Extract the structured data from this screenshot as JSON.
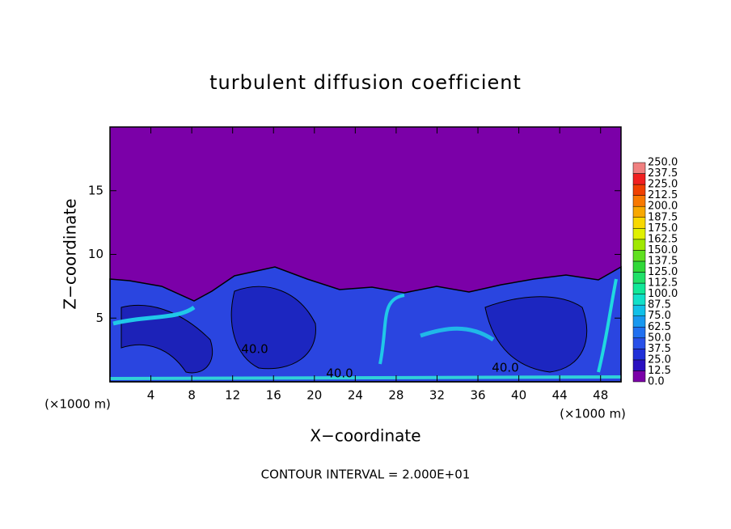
{
  "chart_data": {
    "type": "contour",
    "title": "turbulent diffusion coefficient",
    "xlabel": "X−coordinate",
    "ylabel": "Z−coordinate",
    "x_unit_label": "(×1000 m)",
    "annotation": "CONTOUR INTERVAL = 2.000E+01",
    "xlim": [
      0,
      50
    ],
    "ylim": [
      0,
      20
    ],
    "xticks": [
      4,
      8,
      12,
      16,
      20,
      24,
      28,
      32,
      36,
      40,
      44,
      48
    ],
    "yticks": [
      5,
      10,
      15
    ],
    "contour_labels": [
      {
        "value": 40,
        "label": "40.0"
      },
      {
        "value": 40,
        "label": "40.0"
      },
      {
        "value": 40,
        "label": "40.0"
      }
    ],
    "colorbar": {
      "levels": [
        {
          "value": 0,
          "label": "0.0"
        },
        {
          "value": 12.5,
          "label": "12.5"
        },
        {
          "value": 25,
          "label": "25.0"
        },
        {
          "value": 37.5,
          "label": "37.5"
        },
        {
          "value": 50,
          "label": "50.0"
        },
        {
          "value": 62.5,
          "label": "62.5"
        },
        {
          "value": 75,
          "label": "75.0"
        },
        {
          "value": 87.5,
          "label": "87.5"
        },
        {
          "value": 100,
          "label": "100.0"
        },
        {
          "value": 112.5,
          "label": "112.5"
        },
        {
          "value": 125,
          "label": "125.0"
        },
        {
          "value": 137.5,
          "label": "137.5"
        },
        {
          "value": 150,
          "label": "150.0"
        },
        {
          "value": 162.5,
          "label": "162.5"
        },
        {
          "value": 175,
          "label": "175.0"
        },
        {
          "value": 187.5,
          "label": "187.5"
        },
        {
          "value": 200,
          "label": "200.0"
        },
        {
          "value": 212.5,
          "label": "212.5"
        },
        {
          "value": 225,
          "label": "225.0"
        },
        {
          "value": 237.5,
          "label": "237.5"
        },
        {
          "value": 250,
          "label": "250.0"
        }
      ],
      "colors": [
        "#7b00a8",
        "#2a10c0",
        "#2030d8",
        "#2850e8",
        "#2070f0",
        "#1898f0",
        "#10c0e8",
        "#10e0c8",
        "#10e898",
        "#20e068",
        "#30d838",
        "#60e020",
        "#a0e800",
        "#e0f000",
        "#f8d800",
        "#f8a800",
        "#f87800",
        "#f04000",
        "#f02020",
        "#f08080"
      ]
    }
  }
}
